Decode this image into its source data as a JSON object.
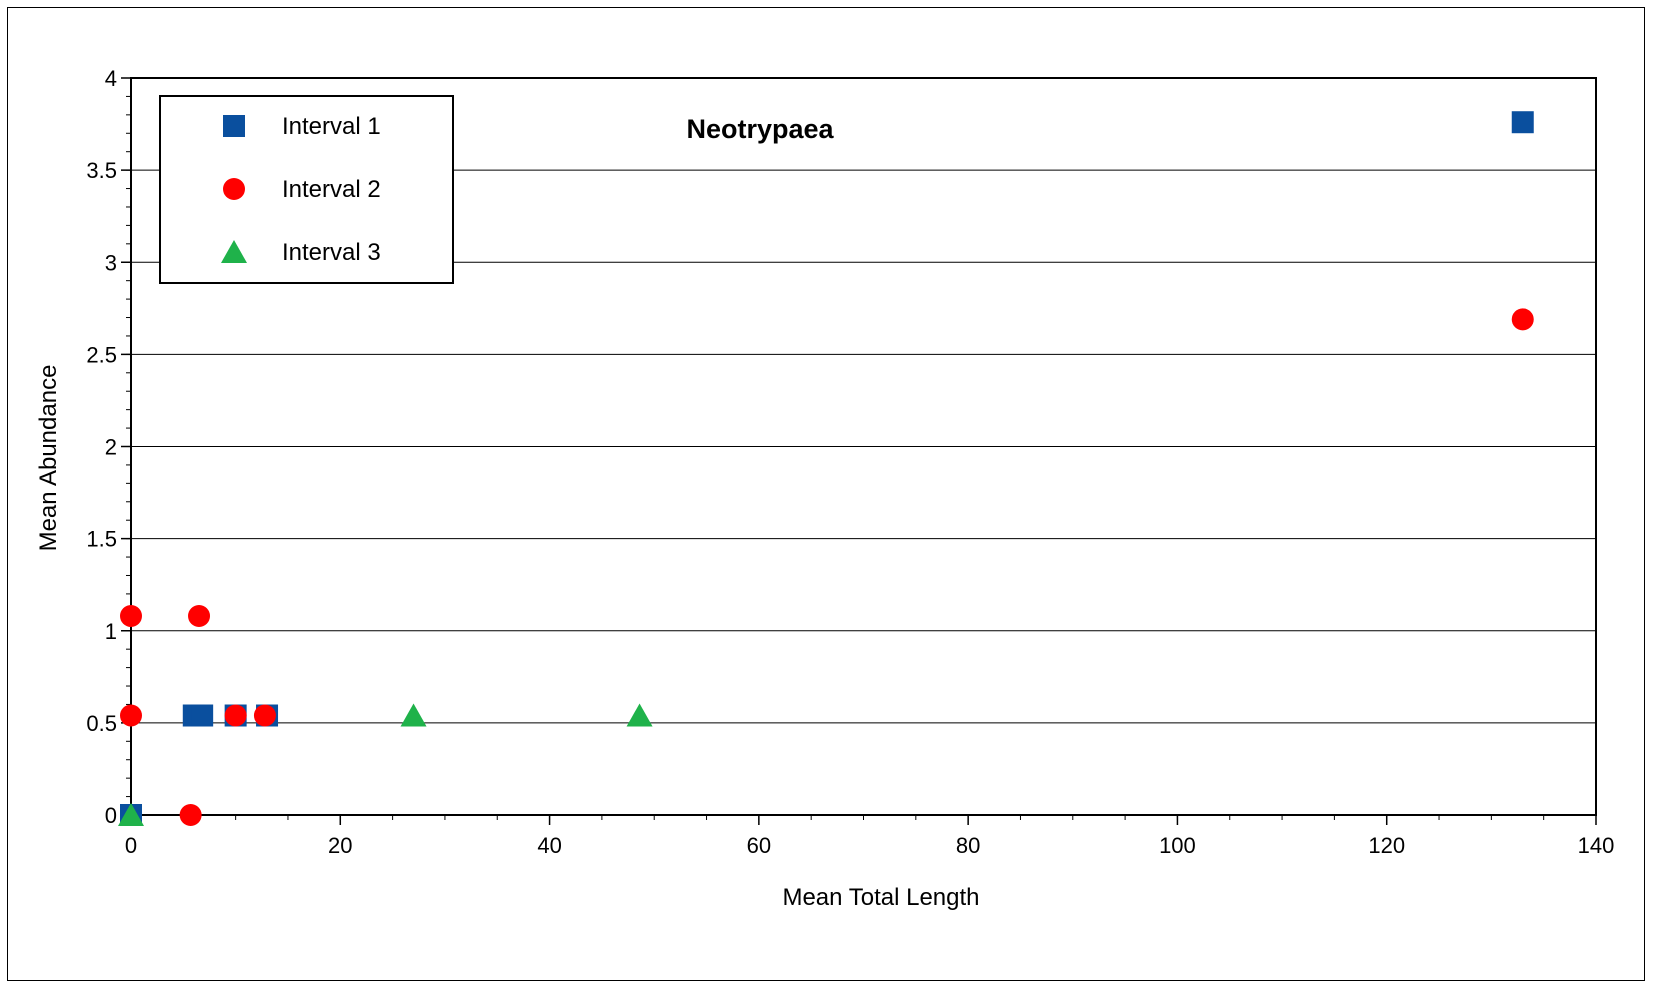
{
  "chart_data": {
    "type": "scatter",
    "title": "Neotrypaea",
    "xlabel": "Mean Total Length",
    "ylabel": "Mean Abundance",
    "xlim": [
      0,
      140
    ],
    "ylim": [
      0,
      4
    ],
    "x_ticks": [
      "0",
      "20",
      "40",
      "60",
      "80",
      "100",
      "120",
      "140"
    ],
    "y_ticks": [
      "0",
      "0.5",
      "1",
      "1.5",
      "2",
      "2.5",
      "3",
      "3.5",
      "4"
    ],
    "grid": "horizontal",
    "legend_position": "top-left",
    "series": [
      {
        "name": "Interval 1",
        "marker": "square",
        "color": "#0a4f9e",
        "points": [
          {
            "x": 0,
            "y": 0
          },
          {
            "x": 6,
            "y": 0.54
          },
          {
            "x": 6.8,
            "y": 0.54
          },
          {
            "x": 10,
            "y": 0.54
          },
          {
            "x": 13,
            "y": 0.54
          },
          {
            "x": 133,
            "y": 3.76
          }
        ]
      },
      {
        "name": "Interval 2",
        "marker": "circle",
        "color": "#ff0000",
        "points": [
          {
            "x": 0,
            "y": 1.08
          },
          {
            "x": 6.5,
            "y": 1.08
          },
          {
            "x": 0,
            "y": 0.54
          },
          {
            "x": 10,
            "y": 0.54
          },
          {
            "x": 12.8,
            "y": 0.54
          },
          {
            "x": 5.7,
            "y": 0
          },
          {
            "x": 133,
            "y": 2.69
          }
        ]
      },
      {
        "name": "Interval 3",
        "marker": "triangle",
        "color": "#1fb24a",
        "points": [
          {
            "x": 0,
            "y": 0
          },
          {
            "x": 27,
            "y": 0.54
          },
          {
            "x": 48.6,
            "y": 0.54
          }
        ]
      }
    ]
  }
}
